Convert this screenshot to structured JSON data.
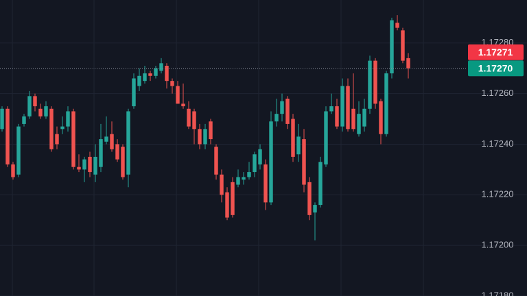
{
  "chart_data": {
    "type": "candlestick",
    "up_color": "#26a69a",
    "down_color": "#ef5350",
    "grid": true,
    "ylim": [
      1.1718,
      1.17297
    ],
    "yticks": [
      {
        "value": 1.1718,
        "label": "1.17180"
      },
      {
        "value": 1.172,
        "label": "1.17200"
      },
      {
        "value": 1.1722,
        "label": "1.17220"
      },
      {
        "value": 1.1724,
        "label": "1.17240"
      },
      {
        "value": 1.1726,
        "label": "1.17260"
      },
      {
        "value": 1.1728,
        "label": "1.17280"
      }
    ],
    "price_lines": [
      {
        "value": 1.17271,
        "label": "1.17271",
        "color": "#f23645"
      },
      {
        "value": 1.1727,
        "label": "1.17270",
        "color": "#089981"
      }
    ],
    "open": [
      1.17246,
      1.17254,
      1.17232,
      1.17228,
      1.17248,
      1.17251,
      1.17259,
      1.17254,
      1.17251,
      1.17254,
      1.17244,
      1.17246,
      1.17247,
      1.17253,
      1.17231,
      1.1723,
      1.17235,
      1.17228,
      1.17231,
      1.17241,
      1.17244,
      1.1724,
      1.17239,
      1.17228,
      1.17255,
      1.17263,
      1.17265,
      1.17268,
      1.17267,
      1.17269,
      1.17271,
      1.17265,
      1.17263,
      1.17256,
      1.17254,
      1.17253,
      1.17246,
      1.1724,
      1.17249,
      1.17239,
      1.17228,
      1.17221,
      1.17225,
      1.17224,
      1.17226,
      1.17227,
      1.17229,
      1.17232,
      1.17232,
      1.17217,
      1.17249,
      1.17252,
      1.17258,
      1.1725,
      1.17236,
      1.17242,
      1.17225,
      1.17213,
      1.17216,
      1.17232,
      1.17253,
      1.17255,
      1.17247,
      1.17263,
      1.17254,
      1.17244,
      1.17247,
      1.17254,
      1.17273,
      1.17257,
      1.17244,
      1.17268,
      1.17288,
      1.17285,
      1.17274
    ],
    "high": [
      1.17255,
      1.17255,
      1.17233,
      1.17248,
      1.17252,
      1.17261,
      1.1726,
      1.17256,
      1.17257,
      1.17255,
      1.17247,
      1.17251,
      1.17255,
      1.17254,
      1.17236,
      1.17235,
      1.17237,
      1.1724,
      1.17248,
      1.17251,
      1.17249,
      1.17242,
      1.1724,
      1.17254,
      1.17268,
      1.1727,
      1.17271,
      1.17269,
      1.17271,
      1.17274,
      1.17272,
      1.17266,
      1.17265,
      1.17264,
      1.17257,
      1.17254,
      1.17248,
      1.17248,
      1.1725,
      1.1724,
      1.1723,
      1.17223,
      1.17227,
      1.1723,
      1.17229,
      1.17233,
      1.17237,
      1.1724,
      1.17234,
      1.17253,
      1.17258,
      1.1726,
      1.17259,
      1.17252,
      1.17248,
      1.17246,
      1.17227,
      1.17217,
      1.17235,
      1.17255,
      1.1726,
      1.17258,
      1.17266,
      1.17266,
      1.17268,
      1.17257,
      1.17258,
      1.17275,
      1.17274,
      1.17258,
      1.17269,
      1.1729,
      1.17291,
      1.17286,
      1.17276
    ],
    "low": [
      1.17245,
      1.17231,
      1.17226,
      1.17227,
      1.17247,
      1.1725,
      1.17253,
      1.1725,
      1.1725,
      1.17237,
      1.17238,
      1.17244,
      1.17245,
      1.1723,
      1.17229,
      1.17225,
      1.17227,
      1.17225,
      1.17229,
      1.1724,
      1.17237,
      1.17233,
      1.17226,
      1.17223,
      1.17254,
      1.17261,
      1.17264,
      1.17265,
      1.17266,
      1.17268,
      1.17262,
      1.1726,
      1.17256,
      1.17254,
      1.17246,
      1.1724,
      1.17238,
      1.17238,
      1.1724,
      1.17226,
      1.17217,
      1.1721,
      1.17211,
      1.17223,
      1.17224,
      1.17226,
      1.17227,
      1.1723,
      1.17214,
      1.17216,
      1.17247,
      1.17249,
      1.17246,
      1.17233,
      1.17233,
      1.17221,
      1.1721,
      1.17202,
      1.17215,
      1.17231,
      1.17252,
      1.17246,
      1.17245,
      1.17245,
      1.17245,
      1.17243,
      1.17245,
      1.17252,
      1.17254,
      1.1724,
      1.17243,
      1.17266,
      1.17285,
      1.17272,
      1.17266
    ],
    "close": [
      1.17254,
      1.17232,
      1.17227,
      1.17247,
      1.17251,
      1.17259,
      1.17255,
      1.17251,
      1.17255,
      1.17238,
      1.1724,
      1.17247,
      1.17253,
      1.17231,
      1.1723,
      1.17234,
      1.17229,
      1.17235,
      1.17242,
      1.17243,
      1.17238,
      1.17234,
      1.17227,
      1.17253,
      1.17266,
      1.17267,
      1.17268,
      1.17267,
      1.1727,
      1.17272,
      1.17265,
      1.17263,
      1.17256,
      1.17255,
      1.17247,
      1.17246,
      1.1724,
      1.17246,
      1.17242,
      1.17228,
      1.1722,
      1.17211,
      1.17212,
      1.17227,
      1.17227,
      1.17229,
      1.17236,
      1.17238,
      1.17217,
      1.17249,
      1.17252,
      1.17257,
      1.17248,
      1.17235,
      1.17243,
      1.17224,
      1.17212,
      1.17216,
      1.17233,
      1.17253,
      1.17255,
      1.17247,
      1.17263,
      1.17246,
      1.17246,
      1.17252,
      1.17254,
      1.17273,
      1.17256,
      1.17244,
      1.17268,
      1.17289,
      1.17286,
      1.17273,
      1.1727
    ]
  }
}
